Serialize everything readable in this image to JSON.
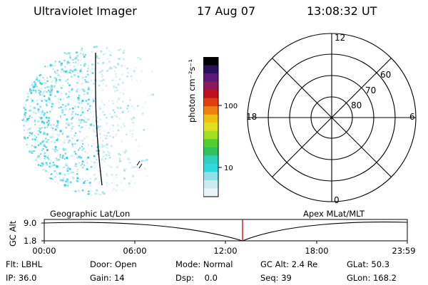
{
  "header": {
    "instrument": "Ultraviolet Imager",
    "date": "17 Aug 07",
    "time": "13:08:32 UT"
  },
  "colorbar": {
    "unit_label": "photon cm⁻²s⁻¹",
    "ticks": [
      "100",
      "10"
    ],
    "colors": [
      "#000000",
      "#2a0f5a",
      "#5a1a7a",
      "#8a1a5a",
      "#c01020",
      "#e04010",
      "#f08010",
      "#f0c010",
      "#e0e020",
      "#a0e020",
      "#50d030",
      "#30c060",
      "#30d0c0",
      "#30d8e0",
      "#90e0e8",
      "#c8ecf0",
      "#e8f4f6"
    ]
  },
  "polar_plot": {
    "mlt_labels": {
      "top": "12",
      "right": "6",
      "bottom": "0",
      "left": "18"
    },
    "lat_labels": [
      "60",
      "70",
      "80"
    ]
  },
  "timeline": {
    "left_title": "Geographic Lat/Lon",
    "right_title": "Apex MLat/MLT",
    "y_axis_label": "GC Alt",
    "y_ticks": [
      "9.0",
      "1.8"
    ],
    "x_ticks": [
      "00:00",
      "06:00",
      "12:00",
      "18:00",
      "23:59"
    ],
    "marker_time": "13:08:32",
    "marker_color": "#cc0000"
  },
  "status": {
    "filter_label": "Flt:",
    "filter_value": "LBHL",
    "door_label": "Door:",
    "door_value": "Open",
    "mode_label": "Mode:",
    "mode_value": "Normal",
    "gcalt_label": "GC Alt:",
    "gcalt_value": "2.4 Re",
    "glat_label": "GLat:",
    "glat_value": "50.3",
    "ip_label": "IP:",
    "ip_value": "36.0",
    "gain_label": "Gain:",
    "gain_value": "14",
    "dsp_label": "Dsp:",
    "dsp_value": "0.0",
    "seq_label": "Seq:",
    "seq_value": "39",
    "glon_label": "GLon:",
    "glon_value": "168.2"
  }
}
